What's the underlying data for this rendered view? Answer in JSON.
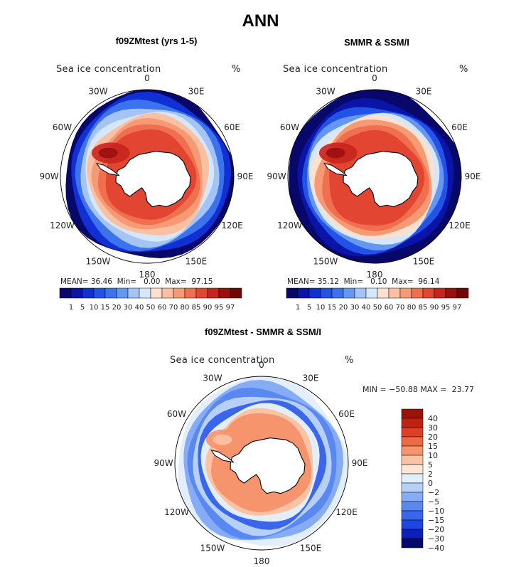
{
  "title": "ANN",
  "colors": {
    "model_scale": [
      "#08086b",
      "#0a14a8",
      "#1130d4",
      "#2352e6",
      "#3d72ee",
      "#6597f2",
      "#a4c4f6",
      "#d7e7fa",
      "#fde1cf",
      "#fbc0a2",
      "#f69a76",
      "#ef6f4f",
      "#e24532",
      "#c8231c",
      "#9b0f0f",
      "#700606"
    ],
    "diff_scale": [
      "#08086b",
      "#0c1fb8",
      "#1d45e0",
      "#3a66ec",
      "#5a88f1",
      "#86acf5",
      "#b7d0f8",
      "#e3eefb",
      "#fde6d6",
      "#fbc3a4",
      "#f6946d",
      "#ee6a45",
      "#df3f25",
      "#c0220f",
      "#9b1206"
    ],
    "land": "#ffffff",
    "outline": "#000000"
  },
  "panels": [
    {
      "id": "model",
      "title": "f09ZMtest (yrs 1-5)",
      "variable": "Sea ice concentration",
      "units": "%",
      "lon_labels": [
        "0",
        "30E",
        "60E",
        "90E",
        "120E",
        "150E",
        "180",
        "150W",
        "120W",
        "90W",
        "60W",
        "30W"
      ],
      "stats": {
        "mean_label": "MEAN=",
        "mean": "36.46",
        "min_label": "Min=",
        "min": "0.00",
        "max_label": "Max=",
        "max": "97.15"
      },
      "colorbar_labels": [
        "1",
        "5",
        "10",
        "15",
        "20",
        "30",
        "40",
        "50",
        "60",
        "70",
        "80",
        "85",
        "90",
        "95",
        "97"
      ]
    },
    {
      "id": "obs",
      "title": "SMMR & SSM/I",
      "variable": "Sea ice concentration",
      "units": "%",
      "lon_labels": [
        "0",
        "30E",
        "60E",
        "90E",
        "120E",
        "150E",
        "180",
        "150W",
        "120W",
        "90W",
        "60W",
        "30W"
      ],
      "stats": {
        "mean_label": "MEAN=",
        "mean": "35.12",
        "min_label": "Min=",
        "min": "0.10",
        "max_label": "Max=",
        "max": "96.14"
      },
      "colorbar_labels": [
        "1",
        "5",
        "10",
        "15",
        "20",
        "30",
        "40",
        "50",
        "60",
        "70",
        "80",
        "85",
        "90",
        "95",
        "97"
      ]
    },
    {
      "id": "diff",
      "title": "f09ZMtest - SMMR & SSM/I",
      "variable": "Sea ice concentration",
      "units": "%",
      "lon_labels": [
        "0",
        "30E",
        "60E",
        "90E",
        "120E",
        "150E",
        "180",
        "150W",
        "120W",
        "90W",
        "60W",
        "30W"
      ],
      "stats_text": "MIN = −50.88 MAX =  23.77",
      "colorbar_labels": [
        "40",
        "30",
        "20",
        "15",
        "10",
        "5",
        "2",
        "0",
        "−2",
        "−5",
        "−10",
        "−15",
        "−20",
        "−30",
        "−40"
      ]
    }
  ]
}
